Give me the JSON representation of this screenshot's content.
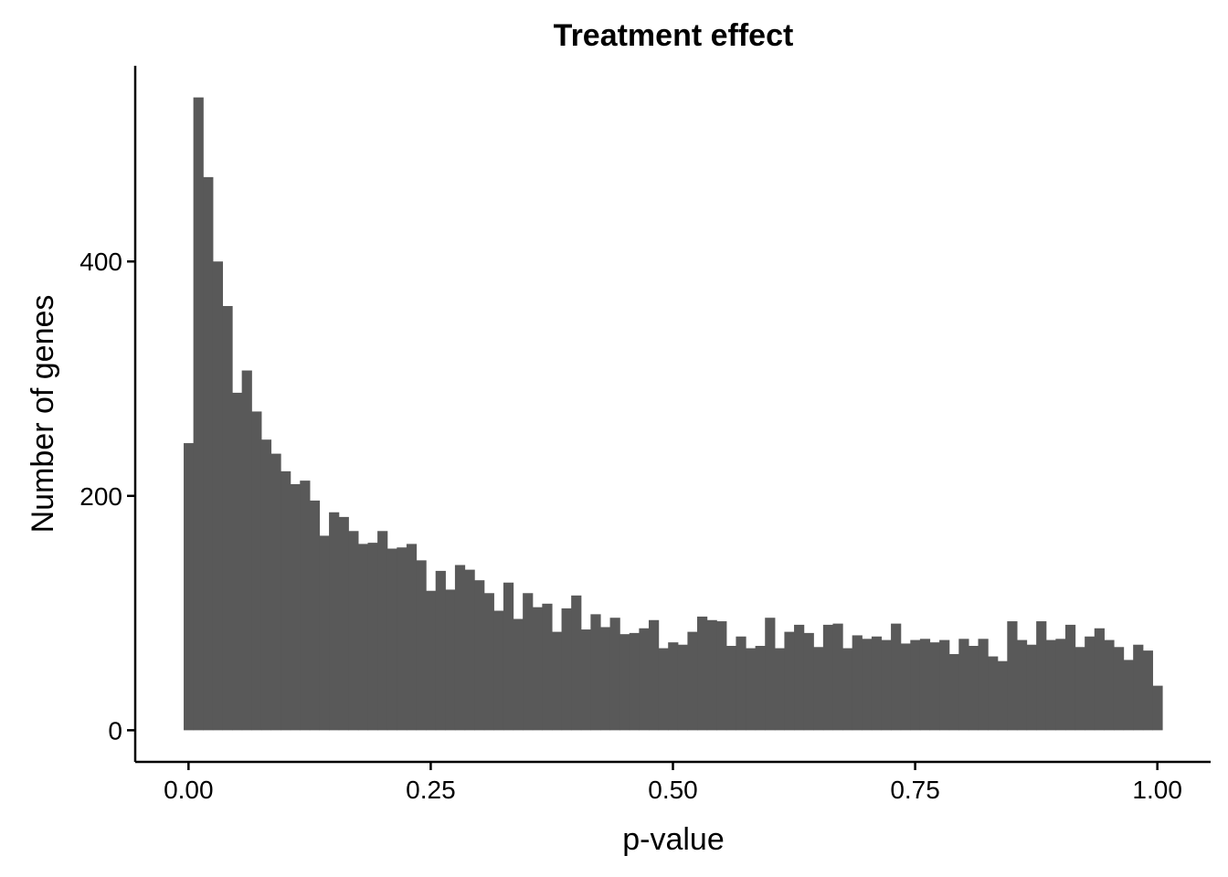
{
  "chart_data": {
    "type": "bar",
    "title": "Treatment effect",
    "xlabel": "p-value",
    "ylabel": "Number of genes",
    "bin_start": -0.005,
    "bin_width": 0.01,
    "values": [
      245,
      540,
      472,
      400,
      362,
      288,
      307,
      272,
      248,
      236,
      221,
      210,
      213,
      196,
      166,
      186,
      182,
      170,
      159,
      160,
      170,
      155,
      156,
      159,
      145,
      119,
      136,
      120,
      141,
      137,
      128,
      117,
      102,
      126,
      95,
      117,
      105,
      108,
      84,
      104,
      115,
      86,
      99,
      88,
      96,
      82,
      83,
      87,
      94,
      70,
      75,
      73,
      84,
      97,
      94,
      93,
      72,
      80,
      70,
      72,
      96,
      70,
      84,
      90,
      83,
      71,
      90,
      91,
      70,
      81,
      78,
      80,
      77,
      91,
      74,
      77,
      78,
      75,
      77,
      65,
      78,
      72,
      78,
      63,
      59,
      93,
      77,
      73,
      93,
      77,
      78,
      90,
      71,
      80,
      87,
      77,
      71,
      60,
      73,
      68,
      38
    ],
    "xticks": [
      0.0,
      0.25,
      0.5,
      0.75,
      1.0
    ],
    "xtick_labels": [
      "0.00",
      "0.25",
      "0.50",
      "0.75",
      "1.00"
    ],
    "yticks": [
      0,
      200,
      400
    ],
    "ytick_labels": [
      "0",
      "200",
      "400"
    ],
    "xlim": [
      -0.055,
      1.055
    ],
    "ylim": [
      -27,
      567
    ],
    "grid": false,
    "bar_color": "#595959"
  }
}
